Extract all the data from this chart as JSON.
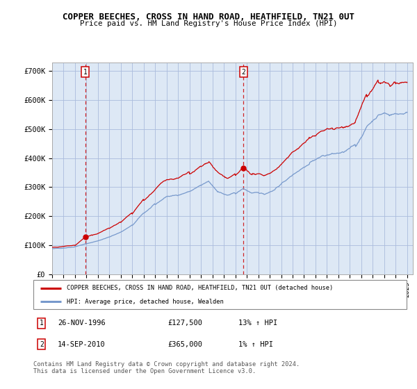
{
  "title": "COPPER BEECHES, CROSS IN HAND ROAD, HEATHFIELD, TN21 0UT",
  "subtitle": "Price paid vs. HM Land Registry's House Price Index (HPI)",
  "ylabel_ticks": [
    "£0",
    "£100K",
    "£200K",
    "£300K",
    "£400K",
    "£500K",
    "£600K",
    "£700K"
  ],
  "ytick_values": [
    0,
    100000,
    200000,
    300000,
    400000,
    500000,
    600000,
    700000
  ],
  "ylim": [
    0,
    730000
  ],
  "xlim_start": 1994.0,
  "xlim_end": 2025.5,
  "legend_line1": "COPPER BEECHES, CROSS IN HAND ROAD, HEATHFIELD, TN21 0UT (detached house)",
  "legend_line2": "HPI: Average price, detached house, Wealden",
  "sale1_date": 1996.9,
  "sale1_price": 127500,
  "sale1_label": "1",
  "sale2_date": 2010.71,
  "sale2_price": 365000,
  "sale2_label": "2",
  "footer": "Contains HM Land Registry data © Crown copyright and database right 2024.\nThis data is licensed under the Open Government Licence v3.0.",
  "line_color_red": "#cc0000",
  "line_color_blue": "#7799cc",
  "bg_color": "#dde8f5",
  "grid_color": "#aabbdd",
  "sale_marker_color": "#cc0000",
  "dashed_line_color": "#cc0000",
  "label1_date": "26-NOV-1996",
  "label1_price": "£127,500",
  "label1_pct": "13% ↑ HPI",
  "label2_date": "14-SEP-2010",
  "label2_price": "£365,000",
  "label2_pct": "1% ↑ HPI"
}
